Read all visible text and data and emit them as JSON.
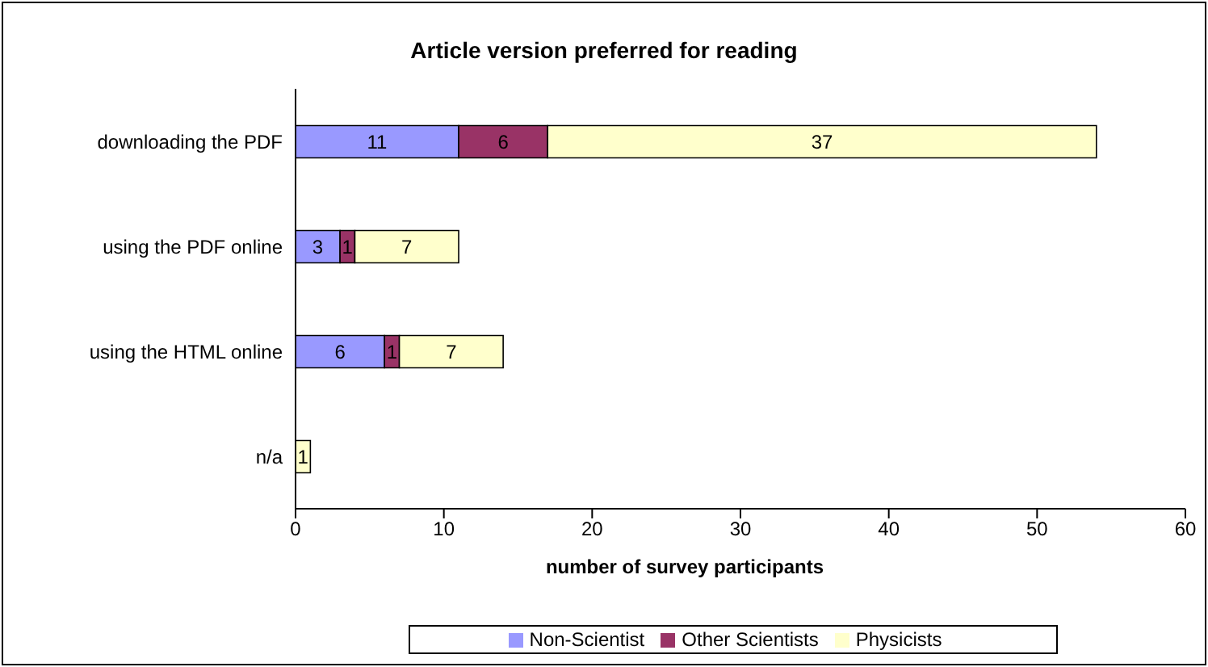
{
  "chart_data": {
    "type": "bar",
    "orientation": "horizontal",
    "stacked": true,
    "title": "Article version preferred for reading",
    "xlabel": "number of survey participants",
    "categories": [
      "downloading the PDF",
      "using the PDF online",
      "using the HTML online",
      "n/a"
    ],
    "series": [
      {
        "name": "Non-Scientist",
        "color": "#9999ff",
        "values": [
          11,
          3,
          6,
          0
        ],
        "value_labels": [
          "11",
          "3",
          "6",
          null
        ]
      },
      {
        "name": "Other Scientists",
        "color": "#993366",
        "values": [
          6,
          1,
          1,
          0
        ],
        "value_labels": [
          "6",
          "1",
          "1",
          null
        ]
      },
      {
        "name": "Physicists",
        "color": "#ffffcc",
        "values": [
          37,
          7,
          7,
          1
        ],
        "value_labels": [
          "37",
          "7",
          "7",
          "1"
        ]
      }
    ],
    "xlim": [
      0,
      60
    ],
    "xticks": [
      0,
      10,
      20,
      30,
      40,
      50,
      60
    ],
    "grid": false,
    "legend": "bottom"
  }
}
